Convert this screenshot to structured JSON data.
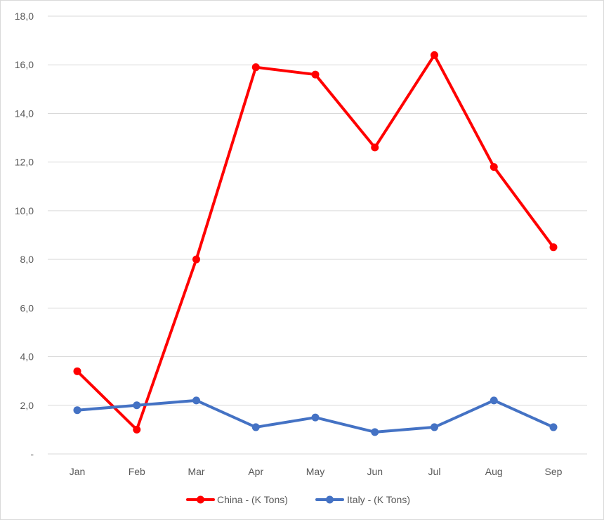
{
  "chart_data": {
    "type": "line",
    "title": "",
    "xlabel": "",
    "ylabel": "",
    "categories": [
      "Jan",
      "Feb",
      "Mar",
      "Apr",
      "May",
      "Jun",
      "Jul",
      "Aug",
      "Sep"
    ],
    "ylim": [
      0,
      18
    ],
    "yticks": [
      0,
      2,
      4,
      6,
      8,
      10,
      12,
      14,
      16,
      18
    ],
    "ytick_labels": [
      "-",
      "2,0",
      "4,0",
      "6,0",
      "8,0",
      "10,0",
      "12,0",
      "14,0",
      "16,0",
      "18,0"
    ],
    "grid": true,
    "legend_position": "bottom",
    "series": [
      {
        "name": "China - (K Tons)",
        "color": "#ff0000",
        "values": [
          3.4,
          1.0,
          8.0,
          15.9,
          15.6,
          12.6,
          16.4,
          11.8,
          8.5
        ]
      },
      {
        "name": "Italy - (K Tons)",
        "color": "#4472c4",
        "values": [
          1.8,
          2.0,
          2.2,
          1.1,
          1.5,
          0.9,
          1.1,
          2.2,
          1.1
        ]
      }
    ]
  }
}
